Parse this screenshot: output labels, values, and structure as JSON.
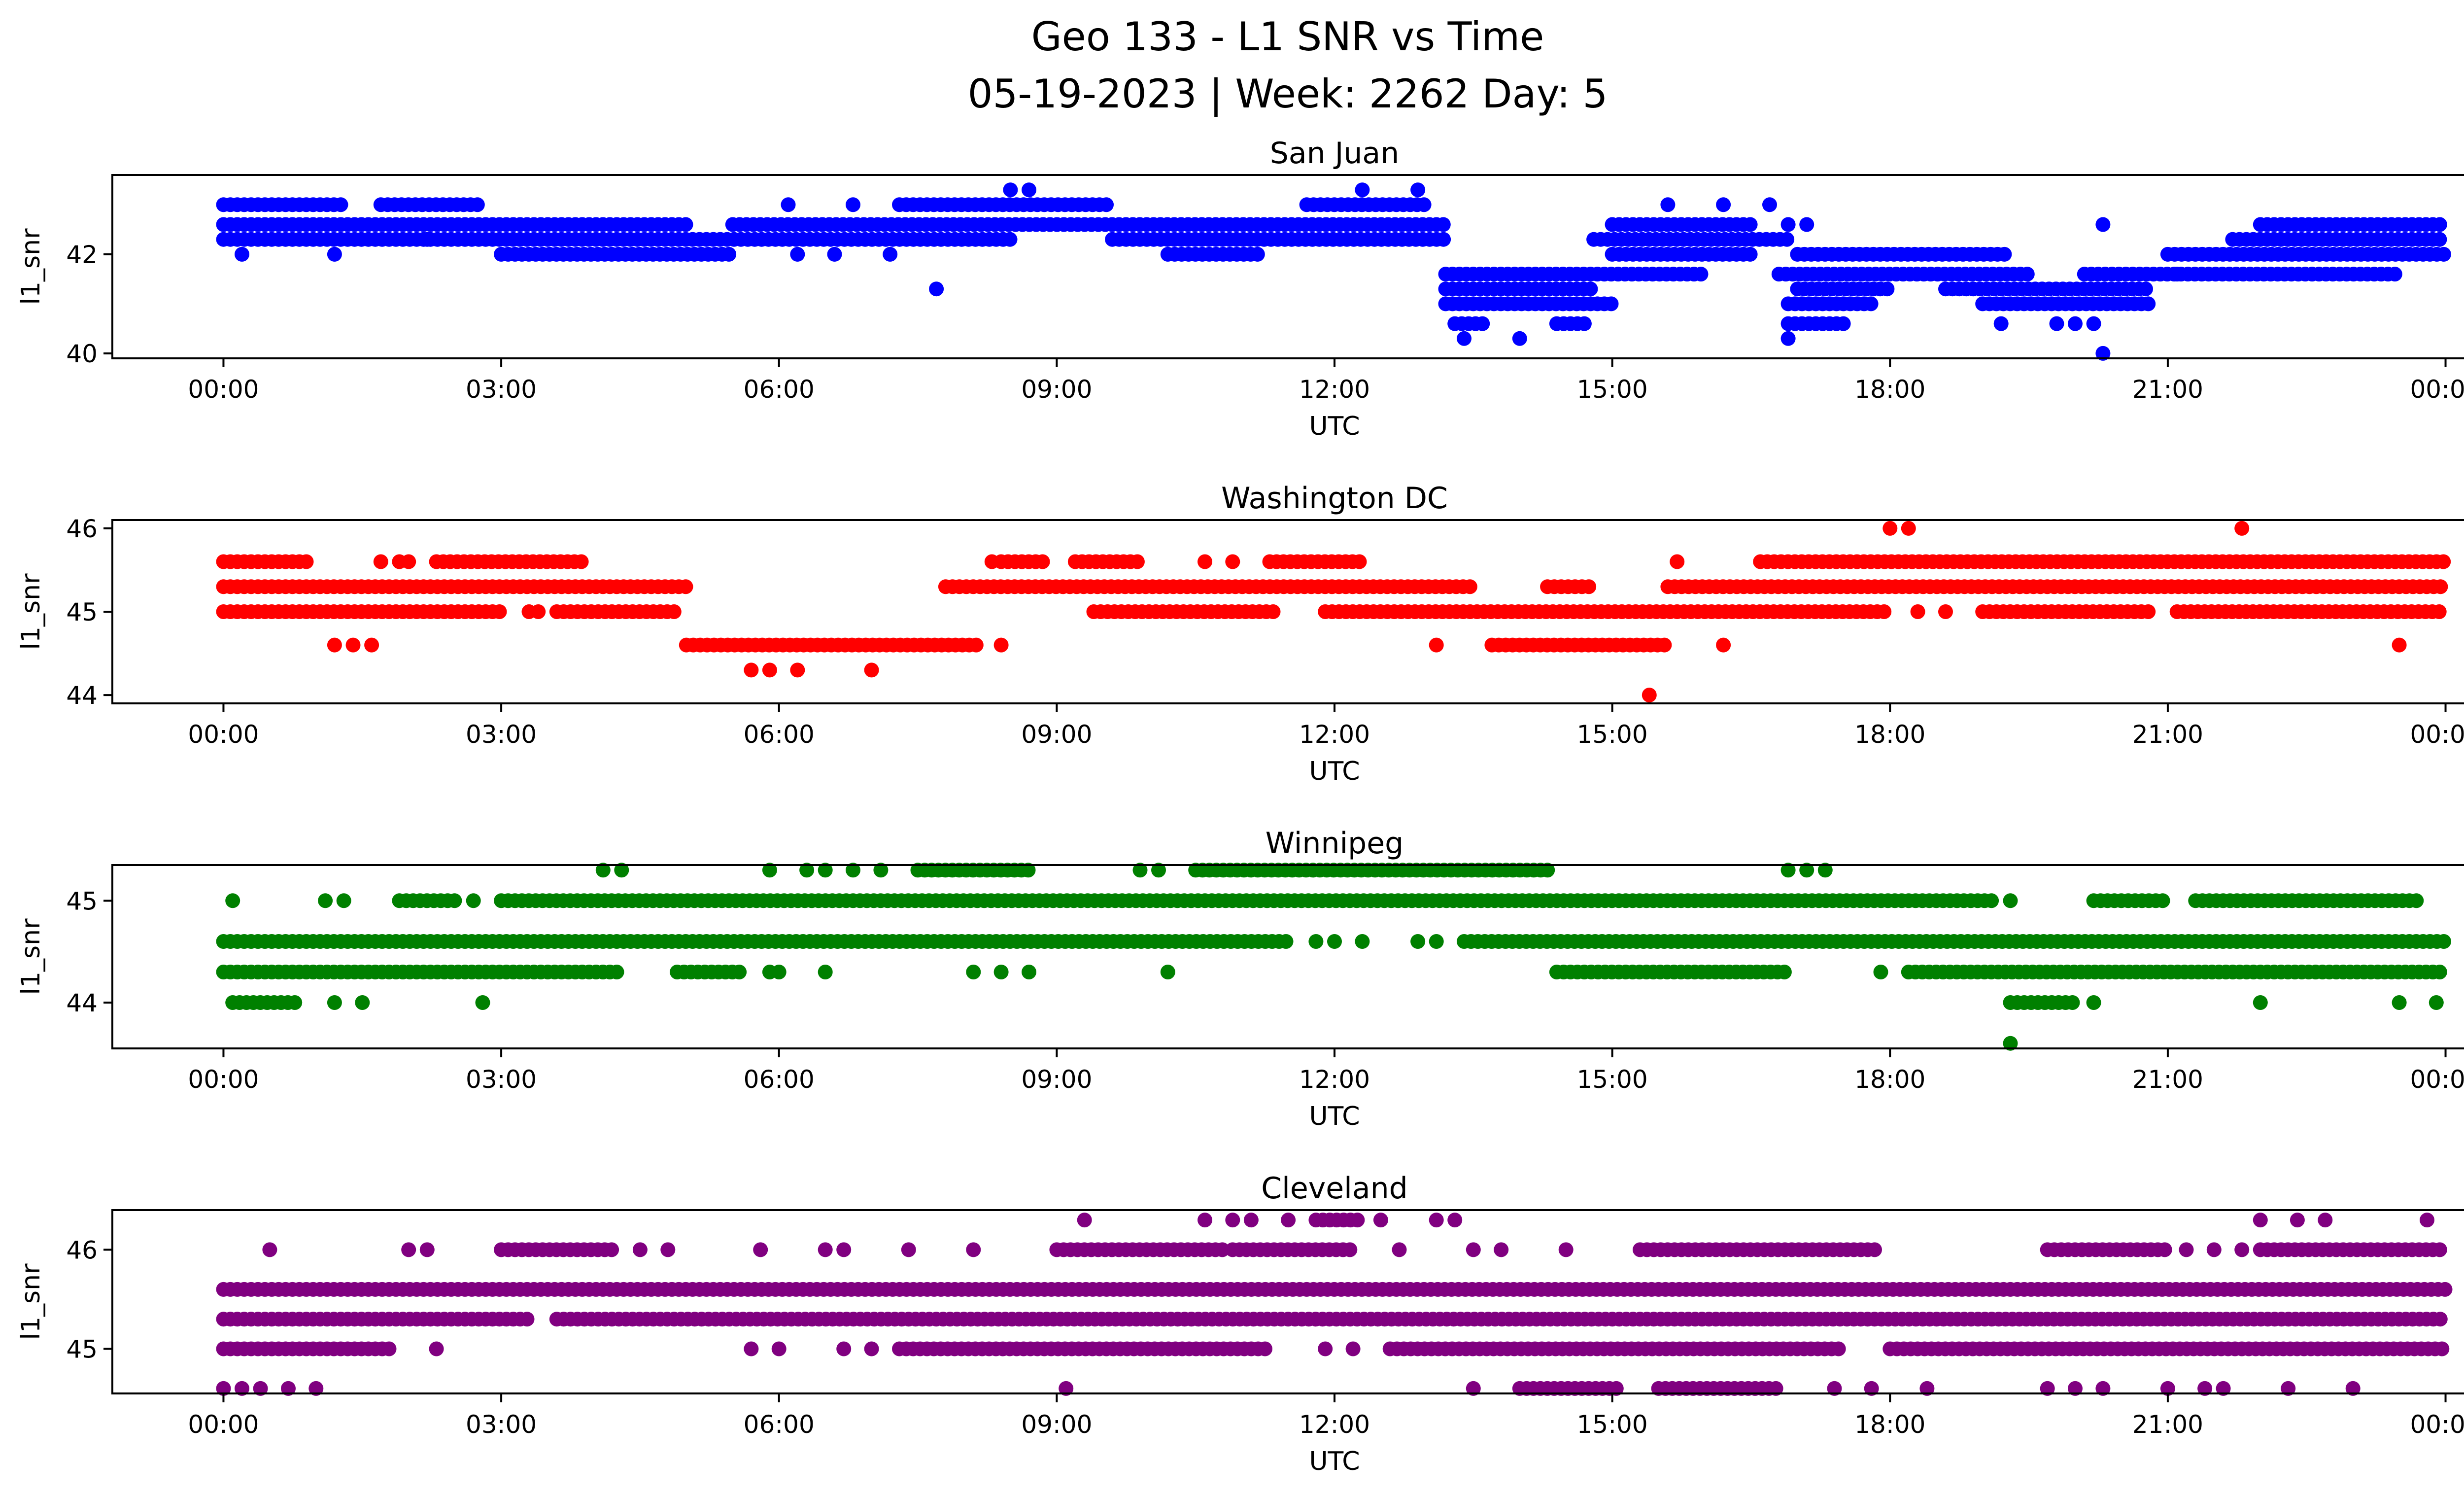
{
  "figure": {
    "title_line1": "Geo 133 - L1 SNR vs Time",
    "title_line2": "05-19-2023 | Week: 2262 Day: 5"
  },
  "chart_data": [
    {
      "type": "scatter",
      "title": "San Juan",
      "xlabel": "UTC",
      "ylabel": "l1_snr",
      "color": "#0000ff",
      "x_ticks": [
        "00:00",
        "03:00",
        "06:00",
        "09:00",
        "12:00",
        "15:00",
        "18:00",
        "21:00",
        "00:00"
      ],
      "y_ticks": [
        40,
        42
      ],
      "xlim_hours": [
        -1.2,
        25.2
      ],
      "ylim": [
        39.9,
        43.6
      ],
      "series": [
        {
          "levels": [
            {
              "y": 43.0,
              "spans": [
                [
                  0.0,
                  1.3
                ],
                [
                  1.7,
                  2.8
                ],
                [
                  7.3,
                  9.6
                ],
                [
                  11.7,
                  13.0
                ]
              ],
              "points": [
                6.1,
                6.8,
                15.6,
                16.2,
                16.7
              ]
            },
            {
              "y": 42.6,
              "spans": [
                [
                  0.0,
                  5.0
                ],
                [
                  5.5,
                  13.2
                ],
                [
                  15.0,
                  16.5
                ],
                [
                  22.0,
                  24.0
                ]
              ],
              "points": [
                16.9,
                17.1,
                20.3
              ]
            },
            {
              "y": 42.3,
              "spans": [
                [
                  0.0,
                  8.5
                ],
                [
                  9.6,
                  13.2
                ],
                [
                  14.8,
                  16.9
                ],
                [
                  21.7,
                  24.0
                ]
              ],
              "points": [
                2.2,
                4.1
              ]
            },
            {
              "y": 42.0,
              "spans": [
                [
                  3.0,
                  5.5
                ],
                [
                  10.2,
                  11.2
                ],
                [
                  15.0,
                  16.5
                ],
                [
                  17.0,
                  19.3
                ],
                [
                  21.0,
                  24.0
                ]
              ],
              "points": [
                0.2,
                1.2,
                6.2,
                6.6,
                7.2
              ]
            },
            {
              "y": 41.6,
              "spans": [
                [
                  13.2,
                  16.0
                ],
                [
                  16.8,
                  19.5
                ],
                [
                  20.1,
                  23.5
                ]
              ],
              "points": [
                21.1
              ]
            },
            {
              "y": 41.3,
              "spans": [
                [
                  13.2,
                  14.8
                ],
                [
                  17.0,
                  18.0
                ],
                [
                  18.6,
                  20.8
                ]
              ],
              "points": [
                7.7
              ]
            },
            {
              "y": 41.0,
              "spans": [
                [
                  13.2,
                  15.0
                ],
                [
                  16.9,
                  17.8
                ],
                [
                  19.0,
                  20.8
                ]
              ],
              "points": []
            },
            {
              "y": 40.6,
              "spans": [
                [
                  13.3,
                  13.6
                ],
                [
                  14.4,
                  14.7
                ],
                [
                  16.9,
                  17.5
                ]
              ],
              "points": [
                19.2,
                19.8,
                20.0,
                20.2
              ]
            },
            {
              "y": 40.3,
              "spans": [],
              "points": [
                13.4,
                14.0,
                16.9
              ]
            },
            {
              "y": 40.0,
              "spans": [],
              "points": [
                20.3
              ]
            },
            {
              "y": 43.3,
              "spans": [],
              "points": [
                8.5,
                8.7,
                12.3,
                12.9
              ]
            }
          ]
        }
      ]
    },
    {
      "type": "scatter",
      "title": "Washington DC",
      "xlabel": "UTC",
      "ylabel": "l1_snr",
      "color": "#ff0000",
      "x_ticks": [
        "00:00",
        "03:00",
        "06:00",
        "09:00",
        "12:00",
        "15:00",
        "18:00",
        "21:00",
        "00:00"
      ],
      "y_ticks": [
        44,
        45,
        46
      ],
      "xlim_hours": [
        -1.2,
        25.2
      ],
      "ylim": [
        43.9,
        46.1
      ],
      "series": [
        {
          "levels": [
            {
              "y": 46.0,
              "spans": [],
              "points": [
                18.0,
                18.2,
                21.8
              ]
            },
            {
              "y": 45.6,
              "spans": [
                [
                  0.0,
                  0.9
                ],
                [
                  2.3,
                  3.9
                ],
                [
                  8.4,
                  8.9
                ],
                [
                  9.2,
                  9.9
                ],
                [
                  11.3,
                  12.3
                ],
                [
                  16.6,
                  24.0
                ]
              ],
              "points": [
                1.7,
                1.9,
                2.0,
                8.3,
                10.6,
                10.9,
                15.7
              ]
            },
            {
              "y": 45.3,
              "spans": [
                [
                  0.0,
                  5.0
                ],
                [
                  7.8,
                  13.5
                ],
                [
                  14.3,
                  14.8
                ],
                [
                  15.6,
                  24.0
                ]
              ],
              "points": []
            },
            {
              "y": 45.0,
              "spans": [
                [
                  0.0,
                  3.0
                ],
                [
                  3.6,
                  4.9
                ],
                [
                  9.4,
                  11.4
                ],
                [
                  11.9,
                  18.0
                ],
                [
                  19.0,
                  20.8
                ],
                [
                  21.1,
                  24.0
                ]
              ],
              "points": [
                3.3,
                3.4,
                18.3,
                18.6
              ]
            },
            {
              "y": 44.6,
              "spans": [
                [
                  5.0,
                  8.2
                ],
                [
                  13.7,
                  15.6
                ]
              ],
              "points": [
                1.2,
                1.4,
                1.6,
                8.4,
                13.1,
                16.2,
                23.5
              ]
            },
            {
              "y": 44.3,
              "spans": [],
              "points": [
                5.7,
                5.9,
                6.2,
                7.0
              ]
            },
            {
              "y": 44.0,
              "spans": [],
              "points": [
                15.4
              ]
            }
          ]
        }
      ]
    },
    {
      "type": "scatter",
      "title": "Winnipeg",
      "xlabel": "UTC",
      "ylabel": "l1_snr",
      "color": "#008000",
      "x_ticks": [
        "00:00",
        "03:00",
        "06:00",
        "09:00",
        "12:00",
        "15:00",
        "18:00",
        "21:00",
        "00:00"
      ],
      "y_ticks": [
        44,
        45
      ],
      "xlim_hours": [
        -1.2,
        25.2
      ],
      "ylim": [
        43.55,
        45.35
      ],
      "series": [
        {
          "levels": [
            {
              "y": 45.3,
              "spans": [
                [
                  10.5,
                  14.3
                ],
                [
                  7.5,
                  8.7
                ]
              ],
              "points": [
                4.1,
                4.3,
                5.9,
                6.3,
                6.5,
                6.8,
                7.1,
                9.9,
                10.1,
                16.9,
                17.1,
                17.3
              ]
            },
            {
              "y": 45.0,
              "spans": [
                [
                  1.9,
                  2.5
                ],
                [
                  3.0,
                  19.1
                ],
                [
                  20.2,
                  21.0
                ],
                [
                  21.3,
                  23.7
                ]
              ],
              "points": [
                0.1,
                1.1,
                1.3,
                2.7,
                19.3
              ]
            },
            {
              "y": 44.6,
              "spans": [
                [
                  0.0,
                  11.5
                ],
                [
                  13.4,
                  24.0
                ]
              ],
              "points": [
                11.8,
                12.0,
                12.3,
                12.9,
                13.1
              ]
            },
            {
              "y": 44.3,
              "spans": [
                [
                  0.0,
                  4.3
                ],
                [
                  4.9,
                  5.6
                ],
                [
                  14.4,
                  16.9
                ],
                [
                  18.2,
                  24.0
                ]
              ],
              "points": [
                5.9,
                6.0,
                6.5,
                8.1,
                8.4,
                8.7,
                10.2,
                17.9
              ]
            },
            {
              "y": 44.0,
              "spans": [
                [
                  0.1,
                  0.8
                ],
                [
                  19.3,
                  20.0
                ]
              ],
              "points": [
                1.2,
                1.5,
                2.8,
                20.2,
                22.0,
                23.5,
                23.9
              ]
            },
            {
              "y": 43.6,
              "spans": [],
              "points": [
                19.3
              ]
            }
          ]
        }
      ]
    },
    {
      "type": "scatter",
      "title": "Cleveland",
      "xlabel": "UTC",
      "ylabel": "l1_snr",
      "color": "#800080",
      "x_ticks": [
        "00:00",
        "03:00",
        "06:00",
        "09:00",
        "12:00",
        "15:00",
        "18:00",
        "21:00",
        "00:00"
      ],
      "y_ticks": [
        45,
        46
      ],
      "xlim_hours": [
        -1.2,
        25.2
      ],
      "ylim": [
        44.55,
        46.4
      ],
      "series": [
        {
          "levels": [
            {
              "y": 46.3,
              "spans": [
                [
                  11.8,
                  12.3
                ]
              ],
              "points": [
                9.3,
                10.6,
                10.9,
                11.1,
                11.5,
                12.5,
                13.1,
                13.3,
                22.0,
                22.4,
                22.7,
                23.8
              ]
            },
            {
              "y": 46.0,
              "spans": [
                [
                  3.0,
                  4.2
                ],
                [
                  9.0,
                  10.8
                ],
                [
                  10.9,
                  12.2
                ],
                [
                  15.3,
                  17.9
                ],
                [
                  19.7,
                  21.0
                ],
                [
                  22.0,
                  24.0
                ]
              ],
              "points": [
                0.5,
                2.0,
                2.2,
                4.5,
                4.8,
                5.8,
                6.5,
                6.7,
                7.4,
                8.1,
                12.7,
                13.5,
                13.8,
                14.5,
                21.2,
                21.5,
                21.8
              ]
            },
            {
              "y": 45.6,
              "spans": [
                [
                  0.0,
                  24.0
                ]
              ],
              "points": []
            },
            {
              "y": 45.3,
              "spans": [
                [
                  0.0,
                  3.3
                ],
                [
                  3.6,
                  24.0
                ]
              ],
              "points": []
            },
            {
              "y": 45.0,
              "spans": [
                [
                  0.0,
                  1.8
                ],
                [
                  7.3,
                  11.3
                ],
                [
                  12.6,
                  17.5
                ],
                [
                  18.0,
                  24.0
                ]
              ],
              "points": [
                2.3,
                5.7,
                6.0,
                6.7,
                7.0,
                11.9,
                12.2
              ]
            },
            {
              "y": 44.6,
              "spans": [
                [
                  14.0,
                  15.1
                ],
                [
                  15.5,
                  16.8
                ]
              ],
              "points": [
                0.0,
                0.2,
                0.4,
                0.7,
                1.0,
                9.1,
                13.5,
                17.4,
                17.8,
                18.4,
                19.7,
                20.0,
                20.3,
                21.0,
                21.4,
                21.6,
                22.3,
                23.0
              ]
            }
          ]
        }
      ]
    }
  ]
}
